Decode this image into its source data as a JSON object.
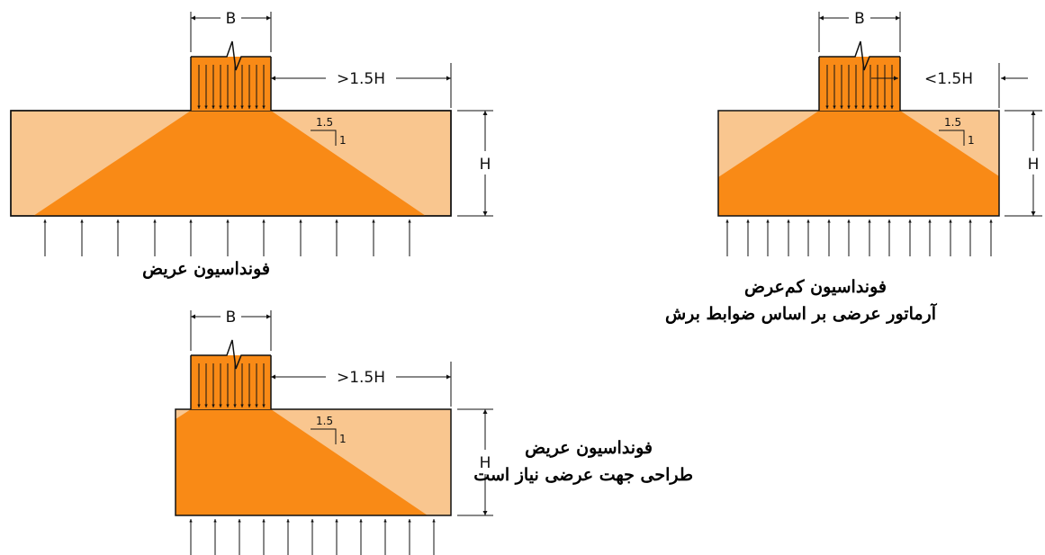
{
  "colors": {
    "light": "#F9C68F",
    "dark": "#F98A16",
    "line": "#111111",
    "background": "#FFFFFF"
  },
  "diagrams": [
    {
      "id": "wide",
      "labels": {
        "width": "B",
        "distance": ">1.5H",
        "height": "H",
        "slope_run": "1.5",
        "slope_rise": "1"
      },
      "caption_lines": [
        "فونداسیون عریض"
      ]
    },
    {
      "id": "narrow",
      "labels": {
        "width": "B",
        "distance": "<1.5H",
        "height": "H",
        "slope_run": "1.5",
        "slope_rise": "1"
      },
      "caption_lines": [
        "فونداسیون کم‌عرض",
        "آرماتور عرضی بر اساس ضوابط برش"
      ]
    },
    {
      "id": "wide-transverse",
      "labels": {
        "width": "B",
        "distance": ">1.5H",
        "height": "H",
        "slope_run": "1.5",
        "slope_rise": "1"
      },
      "caption_lines": [
        "فونداسیون عریض",
        "طراحی جهت عرضی نیاز است"
      ]
    }
  ]
}
